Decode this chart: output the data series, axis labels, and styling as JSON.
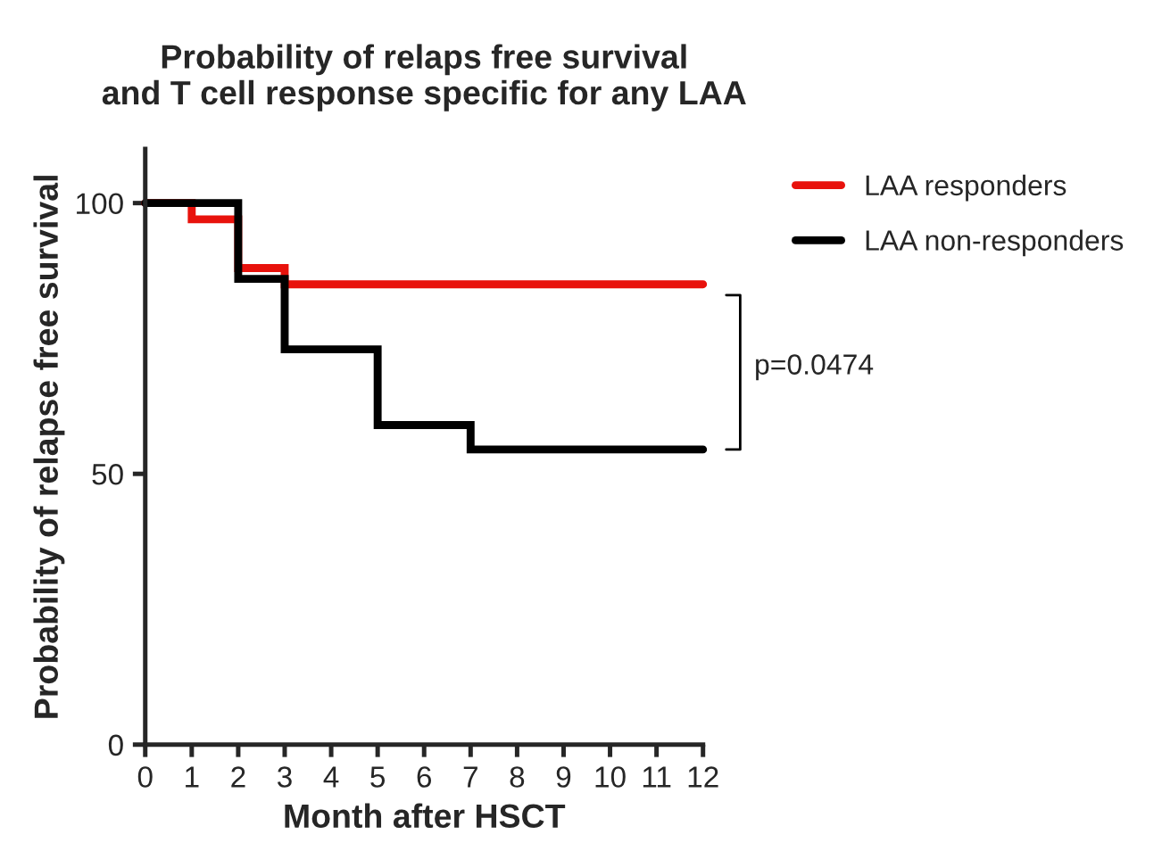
{
  "chart_data": {
    "type": "step",
    "title": "Probability of relaps free survival\nand T cell response specific for any LAA",
    "xlabel": "Month after HSCT",
    "ylabel": "Probability of relapse free survival",
    "series": [
      {
        "name": "LAA responders",
        "color": "#e8120c",
        "x": [
          0,
          1,
          2,
          3,
          12
        ],
        "values": [
          100,
          97,
          88,
          85,
          85
        ]
      },
      {
        "name": "LAA non-responders",
        "color": "#000000",
        "x": [
          0,
          2,
          3,
          5,
          7,
          12
        ],
        "values": [
          100,
          86,
          73,
          59,
          54.5,
          54.5
        ]
      }
    ],
    "xlim": [
      0,
      12
    ],
    "xticks": [
      0,
      1,
      2,
      3,
      4,
      5,
      6,
      7,
      8,
      9,
      10,
      11,
      12
    ],
    "ylim": [
      0,
      110
    ],
    "yticks": [
      0,
      50,
      100
    ],
    "annotations": [
      "p=0.0474"
    ],
    "legend": "top right",
    "grid": false,
    "line_style": "solid",
    "marker": "none"
  }
}
